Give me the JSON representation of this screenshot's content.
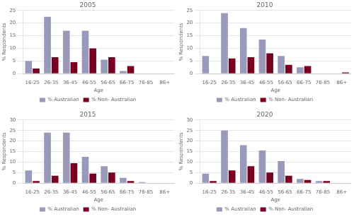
{
  "chart_data": [
    {
      "type": "bar",
      "title": "2005",
      "categories": [
        "16-25",
        "26-35",
        "36-45",
        "46-55",
        "56-65",
        "66-75",
        "76-85",
        "86+"
      ],
      "series": [
        {
          "name": "% Australian",
          "color": "#9999bb",
          "values": [
            5,
            22.5,
            17,
            17,
            5.5,
            1,
            0,
            0
          ]
        },
        {
          "name": "% Non- Australian",
          "color": "#7a0020",
          "values": [
            2,
            6.5,
            4.5,
            10,
            6.5,
            3,
            0,
            0
          ]
        }
      ],
      "xlabel": "Age",
      "ylabel": "% Respondents",
      "ylim": [
        0,
        25
      ],
      "yticks": [
        0,
        5,
        10,
        15,
        20,
        25
      ],
      "grid": "y",
      "legend": "bottom"
    },
    {
      "type": "bar",
      "title": "2010",
      "categories": [
        "16-25",
        "26-35",
        "36-45",
        "46-55",
        "56-65",
        "66-75",
        "76-85",
        "86+"
      ],
      "series": [
        {
          "name": "% Australian",
          "color": "#9999bb",
          "values": [
            7,
            24,
            18,
            13.5,
            7,
            2.5,
            0,
            0
          ]
        },
        {
          "name": "% Non- Australian",
          "color": "#7a0020",
          "values": [
            0,
            6,
            6.5,
            8,
            3.5,
            3,
            0,
            0.5
          ]
        }
      ],
      "xlabel": "Age",
      "ylabel": "% Respondents",
      "ylim": [
        0,
        25
      ],
      "yticks": [
        0,
        5,
        10,
        15,
        20,
        25
      ],
      "grid": "y",
      "legend": "bottom"
    },
    {
      "type": "bar",
      "title": "2015",
      "categories": [
        "16-25",
        "26-35",
        "36-45",
        "46-55",
        "56-65",
        "66-75",
        "76-85",
        "86+"
      ],
      "series": [
        {
          "name": "% Australian",
          "color": "#9999bb",
          "values": [
            6,
            24,
            24,
            12.5,
            8,
            2.5,
            0.5,
            0
          ]
        },
        {
          "name": "% Non- Australian",
          "color": "#7a0020",
          "values": [
            1,
            3.5,
            9.5,
            4.5,
            5,
            1,
            0,
            0
          ]
        }
      ],
      "xlabel": "Age",
      "ylabel": "% Respondents",
      "ylim": [
        0,
        30
      ],
      "yticks": [
        0,
        5,
        10,
        15,
        20,
        25,
        30
      ],
      "grid": "y",
      "legend": "bottom"
    },
    {
      "type": "bar",
      "title": "2020",
      "categories": [
        "16-25",
        "26-35",
        "36-45",
        "46-55",
        "56-65",
        "66-75",
        "76-85",
        "86+"
      ],
      "series": [
        {
          "name": "% Australian",
          "color": "#9999bb",
          "values": [
            4.5,
            25,
            18,
            15.5,
            10.5,
            2,
            1,
            0
          ]
        },
        {
          "name": "% Non- Australian",
          "color": "#7a0020",
          "values": [
            1,
            6,
            8,
            5,
            3.5,
            1.5,
            1,
            0
          ]
        }
      ],
      "xlabel": "Age",
      "ylabel": "% Respondents",
      "ylim": [
        0,
        30
      ],
      "yticks": [
        0,
        5,
        10,
        15,
        20,
        25,
        30
      ],
      "grid": "y",
      "legend": "bottom"
    }
  ]
}
